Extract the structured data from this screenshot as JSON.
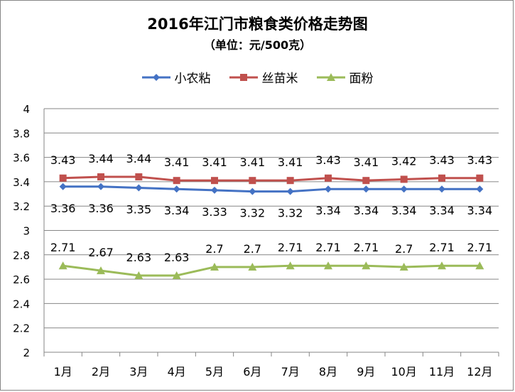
{
  "chart_data": {
    "type": "line",
    "title": "2016年江门市粮食类价格走势图",
    "subtitle": "（单位：元/500克）",
    "categories": [
      "1月",
      "2月",
      "3月",
      "4月",
      "5月",
      "6月",
      "7月",
      "8月",
      "9月",
      "10月",
      "11月",
      "12月"
    ],
    "ylim": [
      2,
      4
    ],
    "yticks": [
      "4",
      "3.8",
      "3.6",
      "3.4",
      "3.2",
      "3",
      "2.8",
      "2.6",
      "2.4",
      "2.2",
      "2"
    ],
    "grid": true,
    "legend_position": "top",
    "series": [
      {
        "name": "小农粘",
        "color": "#4472C4",
        "marker": "diamond",
        "values": [
          3.36,
          3.36,
          3.35,
          3.34,
          3.33,
          3.32,
          3.32,
          3.34,
          3.34,
          3.34,
          3.34,
          3.34
        ],
        "labels": [
          "3.36",
          "3.36",
          "3.35",
          "3.34",
          "3.33",
          "3.32",
          "3.32",
          "3.34",
          "3.34",
          "3.34",
          "3.34",
          "3.34"
        ],
        "label_position": "below"
      },
      {
        "name": "丝苗米",
        "color": "#C0504D",
        "marker": "square",
        "values": [
          3.43,
          3.44,
          3.44,
          3.41,
          3.41,
          3.41,
          3.41,
          3.43,
          3.41,
          3.42,
          3.43,
          3.43
        ],
        "labels": [
          "3.43",
          "3.44",
          "3.44",
          "3.41",
          "3.41",
          "3.41",
          "3.41",
          "3.43",
          "3.41",
          "3.42",
          "3.43",
          "3.43"
        ],
        "label_position": "above"
      },
      {
        "name": "面粉",
        "color": "#9BBB59",
        "marker": "triangle",
        "values": [
          2.71,
          2.67,
          2.63,
          2.63,
          2.7,
          2.7,
          2.71,
          2.71,
          2.71,
          2.7,
          2.71,
          2.71
        ],
        "labels": [
          "2.71",
          "2.67",
          "2.63",
          "2.63",
          "2.7",
          "2.7",
          "2.71",
          "2.71",
          "2.71",
          "2.7",
          "2.71",
          "2.71"
        ],
        "label_position": "above"
      }
    ]
  }
}
